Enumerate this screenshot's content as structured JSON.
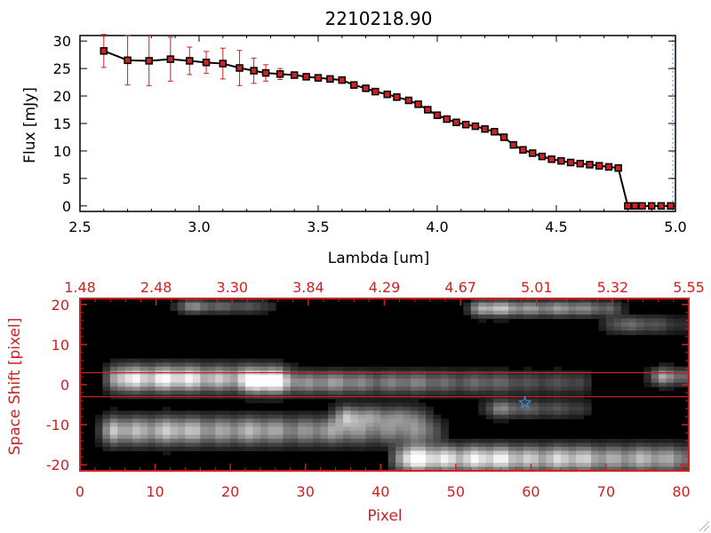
{
  "chart_data": [
    {
      "type": "line",
      "title": "2210218.90",
      "xlabel": "Lambda [um]",
      "ylabel": "Flux [mJy]",
      "xlim": [
        2.5,
        5.0
      ],
      "ylim": [
        -1,
        31
      ],
      "xticks": [
        "2.5",
        "3.0",
        "3.5",
        "4.0",
        "4.5",
        "5.0"
      ],
      "yticks": [
        "0",
        "5",
        "10",
        "15",
        "20",
        "25",
        "30"
      ],
      "line_color": "#000000",
      "marker_color": "#cc2222",
      "error_color": "#cc2222",
      "series": [
        {
          "name": "flux",
          "x": [
            2.6,
            2.7,
            2.79,
            2.88,
            2.96,
            3.03,
            3.1,
            3.17,
            3.23,
            3.28,
            3.34,
            3.4,
            3.45,
            3.5,
            3.55,
            3.6,
            3.65,
            3.7,
            3.74,
            3.79,
            3.83,
            3.88,
            3.92,
            3.96,
            4.0,
            4.04,
            4.08,
            4.12,
            4.16,
            4.2,
            4.24,
            4.28,
            4.32,
            4.36,
            4.4,
            4.44,
            4.48,
            4.52,
            4.56,
            4.6,
            4.64,
            4.68,
            4.72,
            4.76,
            4.8,
            4.83,
            4.86,
            4.9,
            4.94,
            4.98
          ],
          "y": [
            28.2,
            26.5,
            26.4,
            26.7,
            26.4,
            26.1,
            25.9,
            25.1,
            24.6,
            24.2,
            24.0,
            23.8,
            23.5,
            23.3,
            23.1,
            22.9,
            22.0,
            21.4,
            20.8,
            20.3,
            19.8,
            19.2,
            18.5,
            17.5,
            16.5,
            15.8,
            15.2,
            14.8,
            14.5,
            14.0,
            13.5,
            12.5,
            11.1,
            10.2,
            9.6,
            9.0,
            8.5,
            8.2,
            7.9,
            7.7,
            7.5,
            7.3,
            7.1,
            6.9,
            0,
            0,
            0,
            0,
            0,
            0
          ],
          "err": [
            3.0,
            4.5,
            4.5,
            4.0,
            2.5,
            2.0,
            2.8,
            3.2,
            2.3,
            1.5,
            1.0,
            0.5,
            0.4,
            0.4,
            0.4,
            0.4,
            0.3,
            0.3,
            0.3,
            0.3,
            0.3,
            0.3,
            0.3,
            0.3,
            0.3,
            0.3,
            0.3,
            0.3,
            0.3,
            0.3,
            0.3,
            0.3,
            0.3,
            0.3,
            0.3,
            0.3,
            0.3,
            0.3,
            0.3,
            0.3,
            0.3,
            0.3,
            0.3,
            0.3,
            0.3,
            0.3,
            0.3,
            0.3,
            0.3,
            0.3
          ]
        }
      ]
    },
    {
      "type": "heatmap",
      "title": "",
      "xlabel": "Pixel",
      "ylabel": "Space Shift [pixel]",
      "xlim": [
        0,
        81
      ],
      "ylim": [
        -21.5,
        21.5
      ],
      "xticks": [
        "0",
        "10",
        "20",
        "30",
        "40",
        "50",
        "60",
        "70",
        "80"
      ],
      "yticks": [
        "-20",
        "-10",
        "0",
        "10",
        "20"
      ],
      "top_axis_ticks": [
        "1.48",
        "2.48",
        "3.30",
        "3.84",
        "4.29",
        "4.67",
        "5.01",
        "5.32",
        "5.55"
      ],
      "axis_color": "#cc2222",
      "aperture_lines_y": [
        3,
        -3
      ],
      "marker": {
        "label": "star",
        "x": 59.2,
        "y": -4.5,
        "color": "#3a8ee6"
      },
      "colormap": "gray",
      "blobs": [
        {
          "x0": 6,
          "x1": 26,
          "y": 1.5,
          "halfwidth": 3.0,
          "peak": 0.95,
          "fade": 0.65
        },
        {
          "x0": 24,
          "x1": 66,
          "y": 0.5,
          "halfwidth": 2.6,
          "peak": 0.55,
          "fade": 0.35
        },
        {
          "x0": 5,
          "x1": 46,
          "y": -11.5,
          "halfwidth": 3.2,
          "peak": 0.7,
          "fade": 0.55
        },
        {
          "x0": 44,
          "x1": 80,
          "y": -18.5,
          "halfwidth": 3.0,
          "peak": 0.95,
          "fade": 0.55
        },
        {
          "x0": 54,
          "x1": 70,
          "y": 19.0,
          "halfwidth": 1.8,
          "peak": 0.65,
          "fade": 0.55
        },
        {
          "x0": 15,
          "x1": 24,
          "y": 19.5,
          "halfwidth": 1.5,
          "peak": 0.45,
          "fade": 0.4
        },
        {
          "x0": 56,
          "x1": 66,
          "y": -6.0,
          "halfwidth": 2.0,
          "peak": 0.4,
          "fade": 0.4
        },
        {
          "x0": 72,
          "x1": 80,
          "y": 15.0,
          "halfwidth": 2.0,
          "peak": 0.35,
          "fade": 0.35
        },
        {
          "x0": 78,
          "x1": 81,
          "y": 2.0,
          "halfwidth": 2.0,
          "peak": 0.55,
          "fade": 0.55
        },
        {
          "x0": 36,
          "x1": 44,
          "y": -8.0,
          "halfwidth": 2.5,
          "peak": 0.55,
          "fade": 0.5
        }
      ]
    }
  ]
}
